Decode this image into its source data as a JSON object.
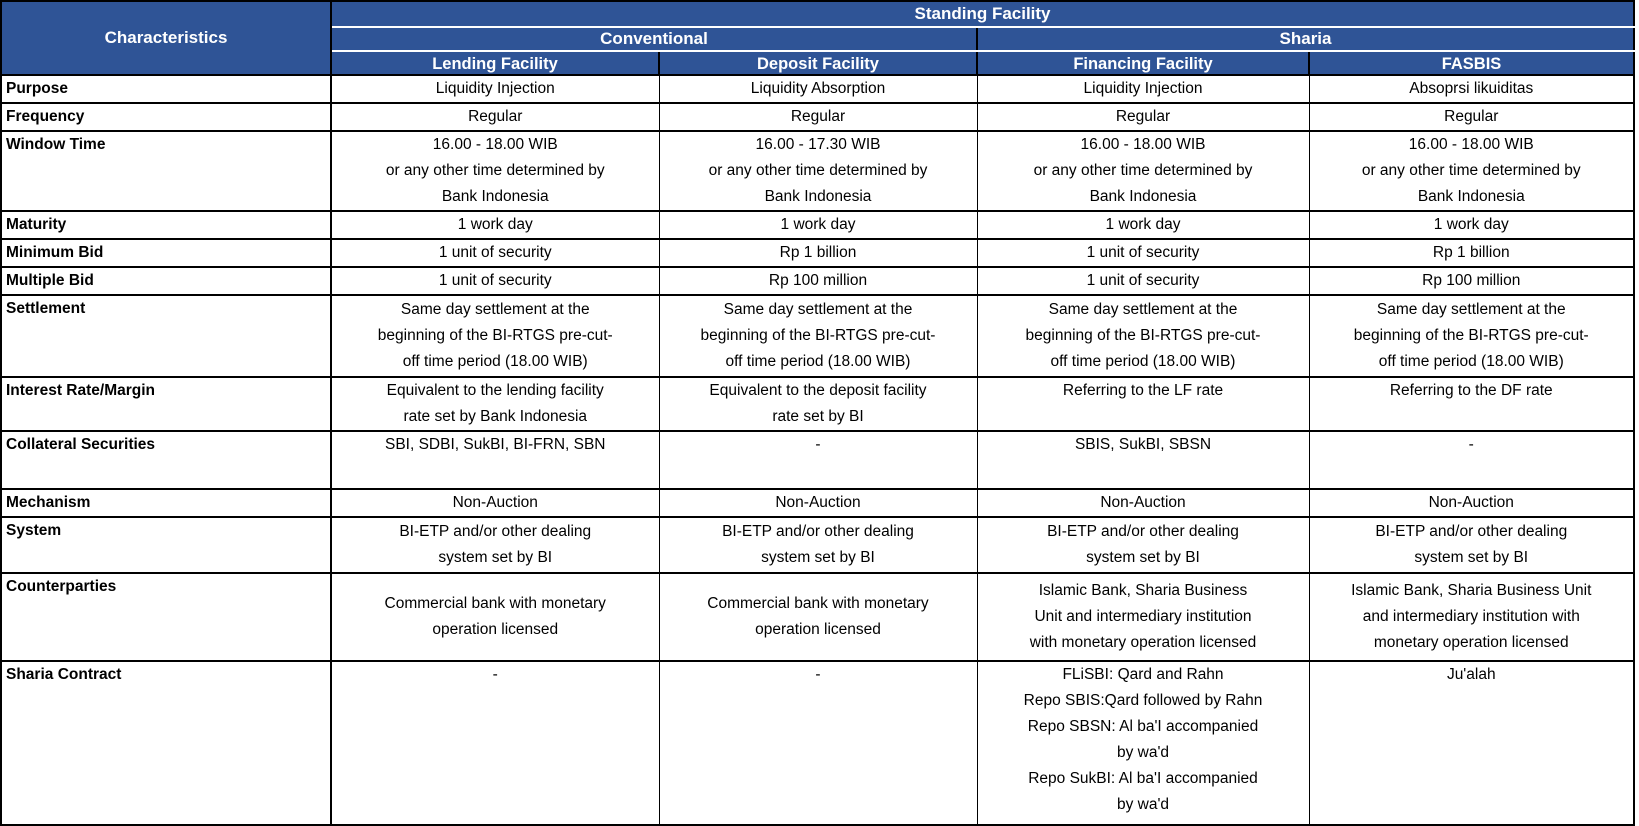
{
  "colors": {
    "header_bg": "#2F5496",
    "header_text": "#FFFFFF",
    "border": "#000000",
    "body_bg": "#FFFFFF"
  },
  "table": {
    "corner_label": "Characteristics",
    "title": "Standing Facility",
    "groups": [
      {
        "label": "Conventional"
      },
      {
        "label": "Sharia"
      }
    ],
    "columns": [
      {
        "label": "Lending Facility"
      },
      {
        "label": "Deposit Facility"
      },
      {
        "label": "Financing Facility"
      },
      {
        "label": "FASBIS"
      }
    ],
    "rows": [
      {
        "label": "Purpose",
        "cells": [
          "Liquidity Injection",
          "Liquidity Absorption",
          "Liquidity Injection",
          "Absoprsi likuiditas"
        ]
      },
      {
        "label": "Frequency",
        "cells": [
          "Regular",
          "Regular",
          "Regular",
          "Regular"
        ]
      },
      {
        "label": "Window Time",
        "cells": [
          "16.00 - 18.00 WIB\nor any other time determined by\nBank Indonesia",
          "16.00 - 17.30 WIB\nor any other time determined by\nBank Indonesia",
          "16.00 - 18.00 WIB\nor any other time determined by\nBank Indonesia",
          "16.00 - 18.00 WIB\nor any other time determined by\nBank Indonesia"
        ]
      },
      {
        "label": "Maturity",
        "cells": [
          "1 work day",
          "1 work day",
          "1 work day",
          "1 work day"
        ]
      },
      {
        "label": "Minimum Bid",
        "cells": [
          "1 unit of security",
          "Rp 1 billion",
          "1 unit of security",
          "Rp 1 billion"
        ]
      },
      {
        "label": "Multiple Bid",
        "cells": [
          "1 unit of security",
          "Rp 100 million",
          "1 unit of security",
          "Rp 100 million"
        ]
      },
      {
        "label": "Settlement",
        "cells": [
          "Same day settlement at the\nbeginning of the BI-RTGS pre-cut-\noff time period (18.00 WIB)",
          "Same day settlement at the\nbeginning of the BI-RTGS pre-cut-\noff time period (18.00 WIB)",
          "Same day settlement at the\nbeginning of the BI-RTGS pre-cut-\noff time period (18.00 WIB)",
          "Same day settlement at the\nbeginning of the BI-RTGS pre-cut-\noff time period (18.00 WIB)"
        ]
      },
      {
        "label": "Interest Rate/Margin",
        "cells": [
          "Equivalent to the lending facility\nrate set by Bank Indonesia",
          "Equivalent to the deposit facility\nrate set by BI",
          "Referring to the LF rate",
          "Referring to the DF rate"
        ]
      },
      {
        "label": "Collateral Securities",
        "cells": [
          "SBI, SDBI, SukBI, BI-FRN, SBN",
          "-",
          "SBIS, SukBI, SBSN",
          "-"
        ]
      },
      {
        "label": "Mechanism",
        "cells": [
          "Non-Auction",
          "Non-Auction",
          "Non-Auction",
          "Non-Auction"
        ]
      },
      {
        "label": "System",
        "cells": [
          "BI-ETP and/or other dealing\nsystem set by BI",
          "BI-ETP and/or other dealing\nsystem set by BI",
          "BI-ETP and/or other dealing\nsystem set by BI",
          "BI-ETP and/or other dealing\nsystem set by BI"
        ]
      },
      {
        "label": "Counterparties",
        "cells": [
          "Commercial bank with monetary\noperation licensed",
          "Commercial bank with monetary\noperation licensed",
          "Islamic Bank, Sharia Business\nUnit and intermediary institution\nwith monetary operation licensed",
          "Islamic Bank, Sharia Business Unit\nand intermediary institution with\nmonetary operation licensed"
        ]
      },
      {
        "label": "Sharia Contract",
        "cells": [
          "-",
          "-",
          "FLiSBI: Qard and Rahn\nRepo SBIS:Qard followed by Rahn\nRepo SBSN: Al ba'I accompanied\nby wa'd\nRepo SukBI: Al ba'I accompanied\nby wa'd",
          "Ju'alah"
        ]
      }
    ]
  }
}
